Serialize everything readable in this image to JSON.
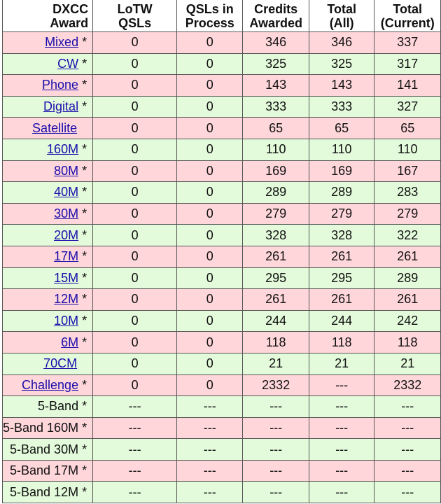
{
  "headers": [
    "DXCC Award",
    "LoTW QSLs",
    "QSLs in Process",
    "Credits Awarded",
    "Total (All)",
    "Total (Current)"
  ],
  "header_lines": [
    [
      "DXCC",
      "Award"
    ],
    [
      "",
      "LoTW",
      "QSLs"
    ],
    [
      "QSLs in",
      "Process"
    ],
    [
      "Credits",
      "Awarded"
    ],
    [
      "Total",
      "(All)"
    ],
    [
      "Total",
      "(Current)"
    ]
  ],
  "row_colors": {
    "pink": "#ffd6da",
    "green": "#e3fbdb"
  },
  "rows": [
    {
      "award": "Mixed",
      "link": true,
      "star": "*",
      "lotw": "0",
      "process": "0",
      "credits": "346",
      "all": "346",
      "current": "337"
    },
    {
      "award": "CW",
      "link": true,
      "star": "*",
      "lotw": "0",
      "process": "0",
      "credits": "325",
      "all": "325",
      "current": "317"
    },
    {
      "award": "Phone",
      "link": true,
      "star": "*",
      "lotw": "0",
      "process": "0",
      "credits": "143",
      "all": "143",
      "current": "141"
    },
    {
      "award": "Digital",
      "link": true,
      "star": "*",
      "lotw": "0",
      "process": "0",
      "credits": "333",
      "all": "333",
      "current": "327"
    },
    {
      "award": "Satellite",
      "link": true,
      "star": "",
      "lotw": "0",
      "process": "0",
      "credits": "65",
      "all": "65",
      "current": "65"
    },
    {
      "award": "160M",
      "link": true,
      "star": "*",
      "lotw": "0",
      "process": "0",
      "credits": "110",
      "all": "110",
      "current": "110"
    },
    {
      "award": "80M",
      "link": true,
      "star": "*",
      "lotw": "0",
      "process": "0",
      "credits": "169",
      "all": "169",
      "current": "167"
    },
    {
      "award": "40M",
      "link": true,
      "star": "*",
      "lotw": "0",
      "process": "0",
      "credits": "289",
      "all": "289",
      "current": "283"
    },
    {
      "award": "30M",
      "link": true,
      "star": "*",
      "lotw": "0",
      "process": "0",
      "credits": "279",
      "all": "279",
      "current": "279"
    },
    {
      "award": "20M",
      "link": true,
      "star": "*",
      "lotw": "0",
      "process": "0",
      "credits": "328",
      "all": "328",
      "current": "322"
    },
    {
      "award": "17M",
      "link": true,
      "star": "*",
      "lotw": "0",
      "process": "0",
      "credits": "261",
      "all": "261",
      "current": "261"
    },
    {
      "award": "15M",
      "link": true,
      "star": "*",
      "lotw": "0",
      "process": "0",
      "credits": "295",
      "all": "295",
      "current": "289"
    },
    {
      "award": "12M",
      "link": true,
      "star": "*",
      "lotw": "0",
      "process": "0",
      "credits": "261",
      "all": "261",
      "current": "261"
    },
    {
      "award": "10M",
      "link": true,
      "star": "*",
      "lotw": "0",
      "process": "0",
      "credits": "244",
      "all": "244",
      "current": "242"
    },
    {
      "award": "6M",
      "link": true,
      "star": "*",
      "lotw": "0",
      "process": "0",
      "credits": "118",
      "all": "118",
      "current": "118"
    },
    {
      "award": "70CM",
      "link": true,
      "star": "",
      "lotw": "0",
      "process": "0",
      "credits": "21",
      "all": "21",
      "current": "21"
    },
    {
      "award": "Challenge",
      "link": true,
      "star": "*",
      "lotw": "0",
      "process": "0",
      "credits": "2332",
      "all": "---",
      "current": "2332"
    },
    {
      "award": "5-Band",
      "link": false,
      "star": "*",
      "lotw": "---",
      "process": "---",
      "credits": "---",
      "all": "---",
      "current": "---"
    },
    {
      "award": "5-Band 160M",
      "link": false,
      "star": "*",
      "lotw": "---",
      "process": "---",
      "credits": "---",
      "all": "---",
      "current": "---"
    },
    {
      "award": "5-Band 30M",
      "link": false,
      "star": "*",
      "lotw": "---",
      "process": "---",
      "credits": "---",
      "all": "---",
      "current": "---"
    },
    {
      "award": "5-Band 17M",
      "link": false,
      "star": "*",
      "lotw": "---",
      "process": "---",
      "credits": "---",
      "all": "---",
      "current": "---"
    },
    {
      "award": "5-Band 12M",
      "link": false,
      "star": "*",
      "lotw": "---",
      "process": "---",
      "credits": "---",
      "all": "---",
      "current": "---"
    }
  ]
}
